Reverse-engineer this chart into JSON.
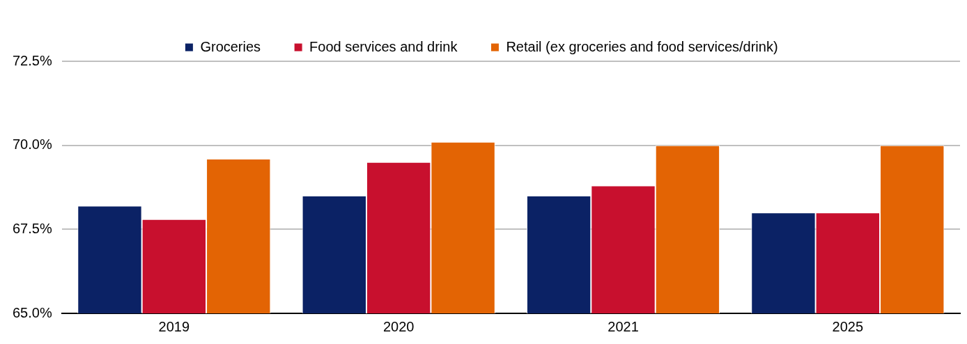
{
  "chart_data": {
    "type": "bar",
    "categories": [
      "2019",
      "2020",
      "2021",
      "2025"
    ],
    "series": [
      {
        "name": "Groceries",
        "color": "#0b2265",
        "values": [
          68.2,
          68.5,
          68.5,
          68.0
        ]
      },
      {
        "name": "Food services and drink",
        "color": "#c8102e",
        "values": [
          67.8,
          69.5,
          68.8,
          68.0
        ]
      },
      {
        "name": "Retail (ex groceries and food services/drink)",
        "color": "#e36404",
        "values": [
          69.6,
          70.1,
          70.0,
          70.0
        ]
      }
    ],
    "ylim": [
      65,
      72.5
    ],
    "yticks": [
      {
        "value": 65,
        "label": "65.0%"
      },
      {
        "value": 67.5,
        "label": "67.5%"
      },
      {
        "value": 70,
        "label": "70.0%"
      },
      {
        "value": 72.5,
        "label": "72.5%"
      }
    ],
    "grid": "y",
    "legend": "top"
  }
}
